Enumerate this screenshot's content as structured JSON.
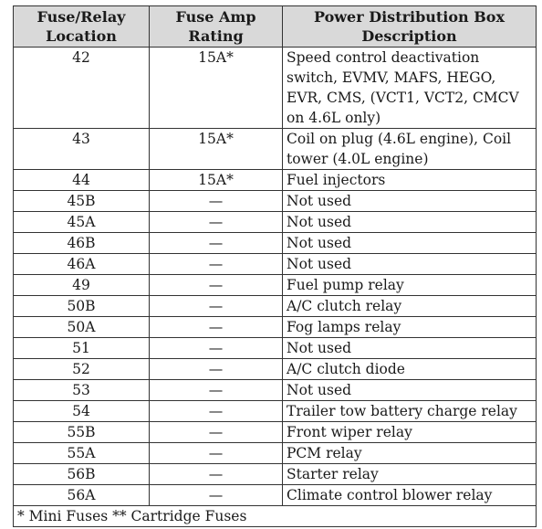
{
  "table": {
    "headers": {
      "location": [
        "Fuse/Relay",
        "Location"
      ],
      "amp": [
        "Fuse Amp",
        "Rating"
      ],
      "description": [
        "Power Distribution Box",
        "Description"
      ]
    },
    "rows": [
      {
        "location": "42",
        "amp": "15A*",
        "description": [
          "Speed control deactivation",
          "switch, EVMV, MAFS, HEGO,",
          "EVR, CMS, (VCT1, VCT2, CMCV",
          "on 4.6L only)"
        ]
      },
      {
        "location": "43",
        "amp": "15A*",
        "description": [
          "Coil on plug (4.6L engine), Coil",
          "tower (4.0L engine)"
        ]
      },
      {
        "location": "44",
        "amp": "15A*",
        "description": [
          "Fuel injectors"
        ]
      },
      {
        "location": "45B",
        "amp": "—",
        "description": [
          "Not used"
        ]
      },
      {
        "location": "45A",
        "amp": "—",
        "description": [
          "Not used"
        ]
      },
      {
        "location": "46B",
        "amp": "—",
        "description": [
          "Not used"
        ]
      },
      {
        "location": "46A",
        "amp": "—",
        "description": [
          "Not used"
        ]
      },
      {
        "location": "49",
        "amp": "—",
        "description": [
          "Fuel pump relay"
        ]
      },
      {
        "location": "50B",
        "amp": "—",
        "description": [
          "A/C clutch relay"
        ]
      },
      {
        "location": "50A",
        "amp": "—",
        "description": [
          "Fog lamps relay"
        ]
      },
      {
        "location": "51",
        "amp": "—",
        "description": [
          "Not used"
        ]
      },
      {
        "location": "52",
        "amp": "—",
        "description": [
          "A/C clutch diode"
        ]
      },
      {
        "location": "53",
        "amp": "—",
        "description": [
          "Not used"
        ]
      },
      {
        "location": "54",
        "amp": "—",
        "description": [
          "Trailer tow battery charge relay"
        ]
      },
      {
        "location": "55B",
        "amp": "—",
        "description": [
          "Front wiper relay"
        ]
      },
      {
        "location": "55A",
        "amp": "—",
        "description": [
          "PCM relay"
        ]
      },
      {
        "location": "56B",
        "amp": "—",
        "description": [
          "Starter relay"
        ]
      },
      {
        "location": "56A",
        "amp": "—",
        "description": [
          "Climate control blower relay"
        ]
      }
    ],
    "footnote": "* Mini Fuses ** Cartridge Fuses"
  },
  "colors": {
    "header_bg": "#d9d9d9",
    "border": "#333333",
    "text": "#1a1a1a"
  }
}
